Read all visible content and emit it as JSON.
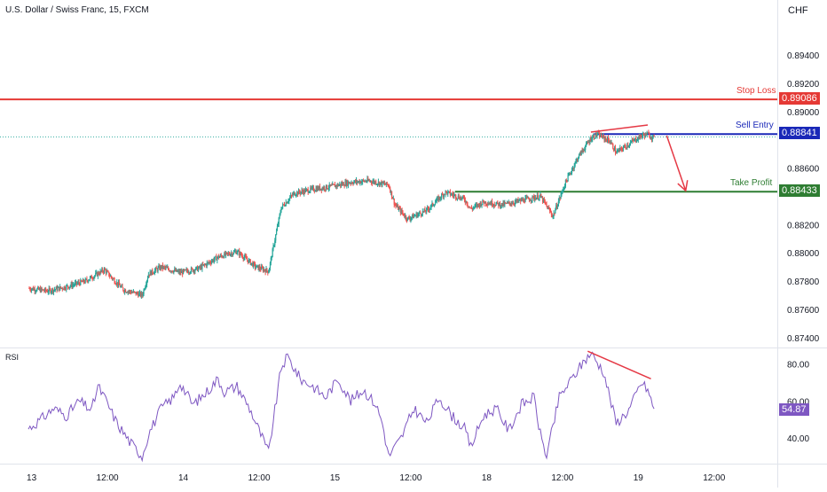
{
  "header": {
    "title": "U.S. Dollar / Swiss Franc, 15, FXCM",
    "currency": "CHF",
    "rsi_label": "RSI"
  },
  "colors": {
    "up": "#26a69a",
    "down": "#ef5350",
    "stop_loss": "#e53935",
    "sell_entry": "#1a28b8",
    "take_profit": "#2e7d32",
    "rsi_line": "#7e57c2",
    "annotation": "#e53945"
  },
  "chart_data": [
    {
      "type": "candlestick",
      "title": "U.S. Dollar / Swiss Franc, 15, FXCM",
      "ylabel": "CHF",
      "ylim": [
        0.8733,
        0.8979
      ],
      "y_ticks": [
        "0.89400",
        "0.89200",
        "0.89000",
        "0.88600",
        "0.88200",
        "0.88000",
        "0.87800",
        "0.87600",
        "0.87400"
      ],
      "x_ticks": [
        "13",
        "12:00",
        "14",
        "12:00",
        "15",
        "12:00",
        "18",
        "12:00",
        "19",
        "12:00"
      ],
      "x_tick_positions": [
        0.5,
        12.5,
        24.5,
        36.5,
        48.5,
        60.5,
        72.5,
        84.5,
        96.5,
        108.5
      ],
      "x_range": [
        -4.5,
        118.5
      ],
      "grid": false,
      "price_path": [
        [
          0,
          0.8775
        ],
        [
          3,
          0.8773
        ],
        [
          6,
          0.8776
        ],
        [
          9,
          0.878
        ],
        [
          12,
          0.8788
        ],
        [
          15,
          0.8774
        ],
        [
          18,
          0.877
        ],
        [
          19,
          0.8785
        ],
        [
          21,
          0.879
        ],
        [
          24,
          0.8786
        ],
        [
          27,
          0.8789
        ],
        [
          30,
          0.8797
        ],
        [
          33,
          0.8801
        ],
        [
          36,
          0.879
        ],
        [
          38,
          0.8787
        ],
        [
          40,
          0.8832
        ],
        [
          42,
          0.8842
        ],
        [
          45,
          0.8845
        ],
        [
          48,
          0.8847
        ],
        [
          51,
          0.885
        ],
        [
          54,
          0.8851
        ],
        [
          57,
          0.8848
        ],
        [
          58,
          0.8834
        ],
        [
          60,
          0.8824
        ],
        [
          63,
          0.883
        ],
        [
          66,
          0.8843
        ],
        [
          69,
          0.8838
        ],
        [
          70,
          0.8831
        ],
        [
          72,
          0.8836
        ],
        [
          75,
          0.8834
        ],
        [
          78,
          0.8837
        ],
        [
          81,
          0.884
        ],
        [
          83,
          0.8826
        ],
        [
          85,
          0.885
        ],
        [
          87,
          0.8868
        ],
        [
          89,
          0.8881
        ],
        [
          90,
          0.8884
        ],
        [
          92,
          0.8879
        ],
        [
          93,
          0.8871
        ],
        [
          95,
          0.8877
        ],
        [
          97,
          0.8883
        ],
        [
          98,
          0.8884
        ],
        [
          99,
          0.8881
        ]
      ],
      "levels": [
        {
          "name": "Stop Loss",
          "price": "0.89086",
          "value": 0.89086,
          "color_key": "stop_loss",
          "x_start": -4.5
        },
        {
          "name": "Sell Entry",
          "price": "0.88841",
          "value": 0.88841,
          "color_key": "sell_entry",
          "x_start": 89.5
        },
        {
          "name": "Take Profit",
          "price": "0.88433",
          "value": 0.88433,
          "color_key": "take_profit",
          "x_start": 67.5
        }
      ],
      "current_price": 0.8882,
      "annotations": [
        {
          "type": "trendline",
          "from": [
            89,
            0.88855
          ],
          "to": [
            98,
            0.88905
          ]
        },
        {
          "type": "arrow",
          "from": [
            101,
            0.8883
          ],
          "to": [
            104,
            0.8844
          ]
        }
      ]
    },
    {
      "type": "line",
      "name": "RSI",
      "ylim": [
        26,
        89
      ],
      "y_ticks": [
        "80.00",
        "60.00",
        "40.00"
      ],
      "last_value": "54.87",
      "values_path": [
        [
          0,
          45
        ],
        [
          2,
          50
        ],
        [
          4,
          56
        ],
        [
          6,
          52
        ],
        [
          8,
          60
        ],
        [
          10,
          55
        ],
        [
          11,
          68
        ],
        [
          12,
          62
        ],
        [
          14,
          48
        ],
        [
          16,
          38
        ],
        [
          18,
          30
        ],
        [
          19,
          42
        ],
        [
          21,
          56
        ],
        [
          23,
          62
        ],
        [
          24,
          70
        ],
        [
          26,
          58
        ],
        [
          28,
          64
        ],
        [
          30,
          72
        ],
        [
          31,
          65
        ],
        [
          33,
          68
        ],
        [
          35,
          56
        ],
        [
          37,
          40
        ],
        [
          38,
          32
        ],
        [
          40,
          78
        ],
        [
          41,
          84
        ],
        [
          43,
          72
        ],
        [
          45,
          68
        ],
        [
          47,
          62
        ],
        [
          49,
          72
        ],
        [
          51,
          60
        ],
        [
          53,
          66
        ],
        [
          55,
          58
        ],
        [
          56,
          48
        ],
        [
          57,
          30
        ],
        [
          59,
          40
        ],
        [
          61,
          56
        ],
        [
          63,
          48
        ],
        [
          65,
          62
        ],
        [
          67,
          52
        ],
        [
          69,
          45
        ],
        [
          70,
          35
        ],
        [
          72,
          52
        ],
        [
          74,
          56
        ],
        [
          76,
          44
        ],
        [
          78,
          58
        ],
        [
          80,
          62
        ],
        [
          81,
          42
        ],
        [
          82,
          30
        ],
        [
          84,
          62
        ],
        [
          86,
          72
        ],
        [
          88,
          82
        ],
        [
          89,
          86
        ],
        [
          91,
          76
        ],
        [
          93,
          48
        ],
        [
          95,
          55
        ],
        [
          97,
          70
        ],
        [
          98,
          66
        ],
        [
          99,
          55
        ]
      ],
      "annotations": [
        {
          "type": "trendline",
          "from": [
            88.5,
            87
          ],
          "to": [
            98.5,
            72
          ]
        }
      ]
    }
  ]
}
